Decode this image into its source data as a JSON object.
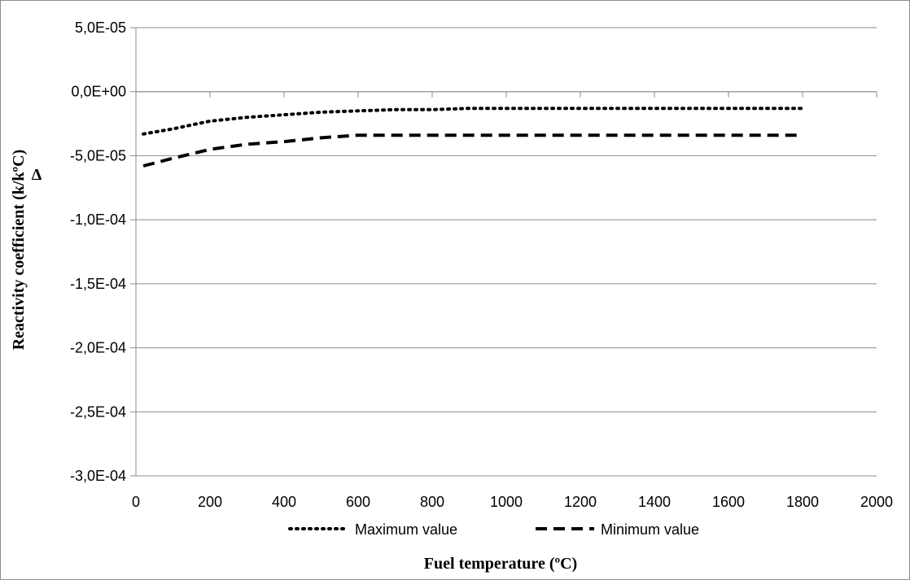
{
  "chart_data": {
    "type": "line",
    "xlabel": "Fuel temperature (ºC)",
    "ylabel": "Reactivity coefficient (k/kºC)",
    "ylabel_symbol": "Δ",
    "xlim": [
      0,
      2000
    ],
    "ylim": [
      -0.0003,
      5e-05
    ],
    "x_ticks": [
      0,
      200,
      400,
      600,
      800,
      1000,
      1200,
      1400,
      1600,
      1800,
      2000
    ],
    "x_tick_labels": [
      "0",
      "200",
      "400",
      "600",
      "800",
      "1000",
      "1200",
      "1400",
      "1600",
      "1800",
      "2000"
    ],
    "y_ticks": [
      5e-05,
      0,
      -5e-05,
      -0.0001,
      -0.00015,
      -0.0002,
      -0.00025,
      -0.0003
    ],
    "y_tick_labels": [
      "5,0E-05",
      "0,0E+00",
      "-5,0E-05",
      "-1,0E-04",
      "-1,5E-04",
      "-2,0E-04",
      "-2,5E-04",
      "-3,0E-04"
    ],
    "grid": "horizontal",
    "legend_position": "bottom",
    "series": [
      {
        "name": "Maximum value",
        "style": "dotted",
        "color": "#000000",
        "x": [
          20,
          100,
          200,
          300,
          400,
          500,
          600,
          700,
          800,
          900,
          1000,
          1200,
          1400,
          1600,
          1800
        ],
        "y": [
          -3.3e-05,
          -2.9e-05,
          -2.3e-05,
          -2e-05,
          -1.8e-05,
          -1.6e-05,
          -1.5e-05,
          -1.4e-05,
          -1.4e-05,
          -1.3e-05,
          -1.3e-05,
          -1.3e-05,
          -1.3e-05,
          -1.3e-05,
          -1.3e-05
        ]
      },
      {
        "name": "Minimum value",
        "style": "dashed",
        "color": "#000000",
        "x": [
          20,
          100,
          200,
          300,
          400,
          500,
          600,
          700,
          800,
          1000,
          1200,
          1400,
          1600,
          1800
        ],
        "y": [
          -5.8e-05,
          -5.2e-05,
          -4.5e-05,
          -4.1e-05,
          -3.9e-05,
          -3.6e-05,
          -3.4e-05,
          -3.4e-05,
          -3.4e-05,
          -3.4e-05,
          -3.4e-05,
          -3.4e-05,
          -3.4e-05,
          -3.4e-05
        ]
      }
    ]
  }
}
